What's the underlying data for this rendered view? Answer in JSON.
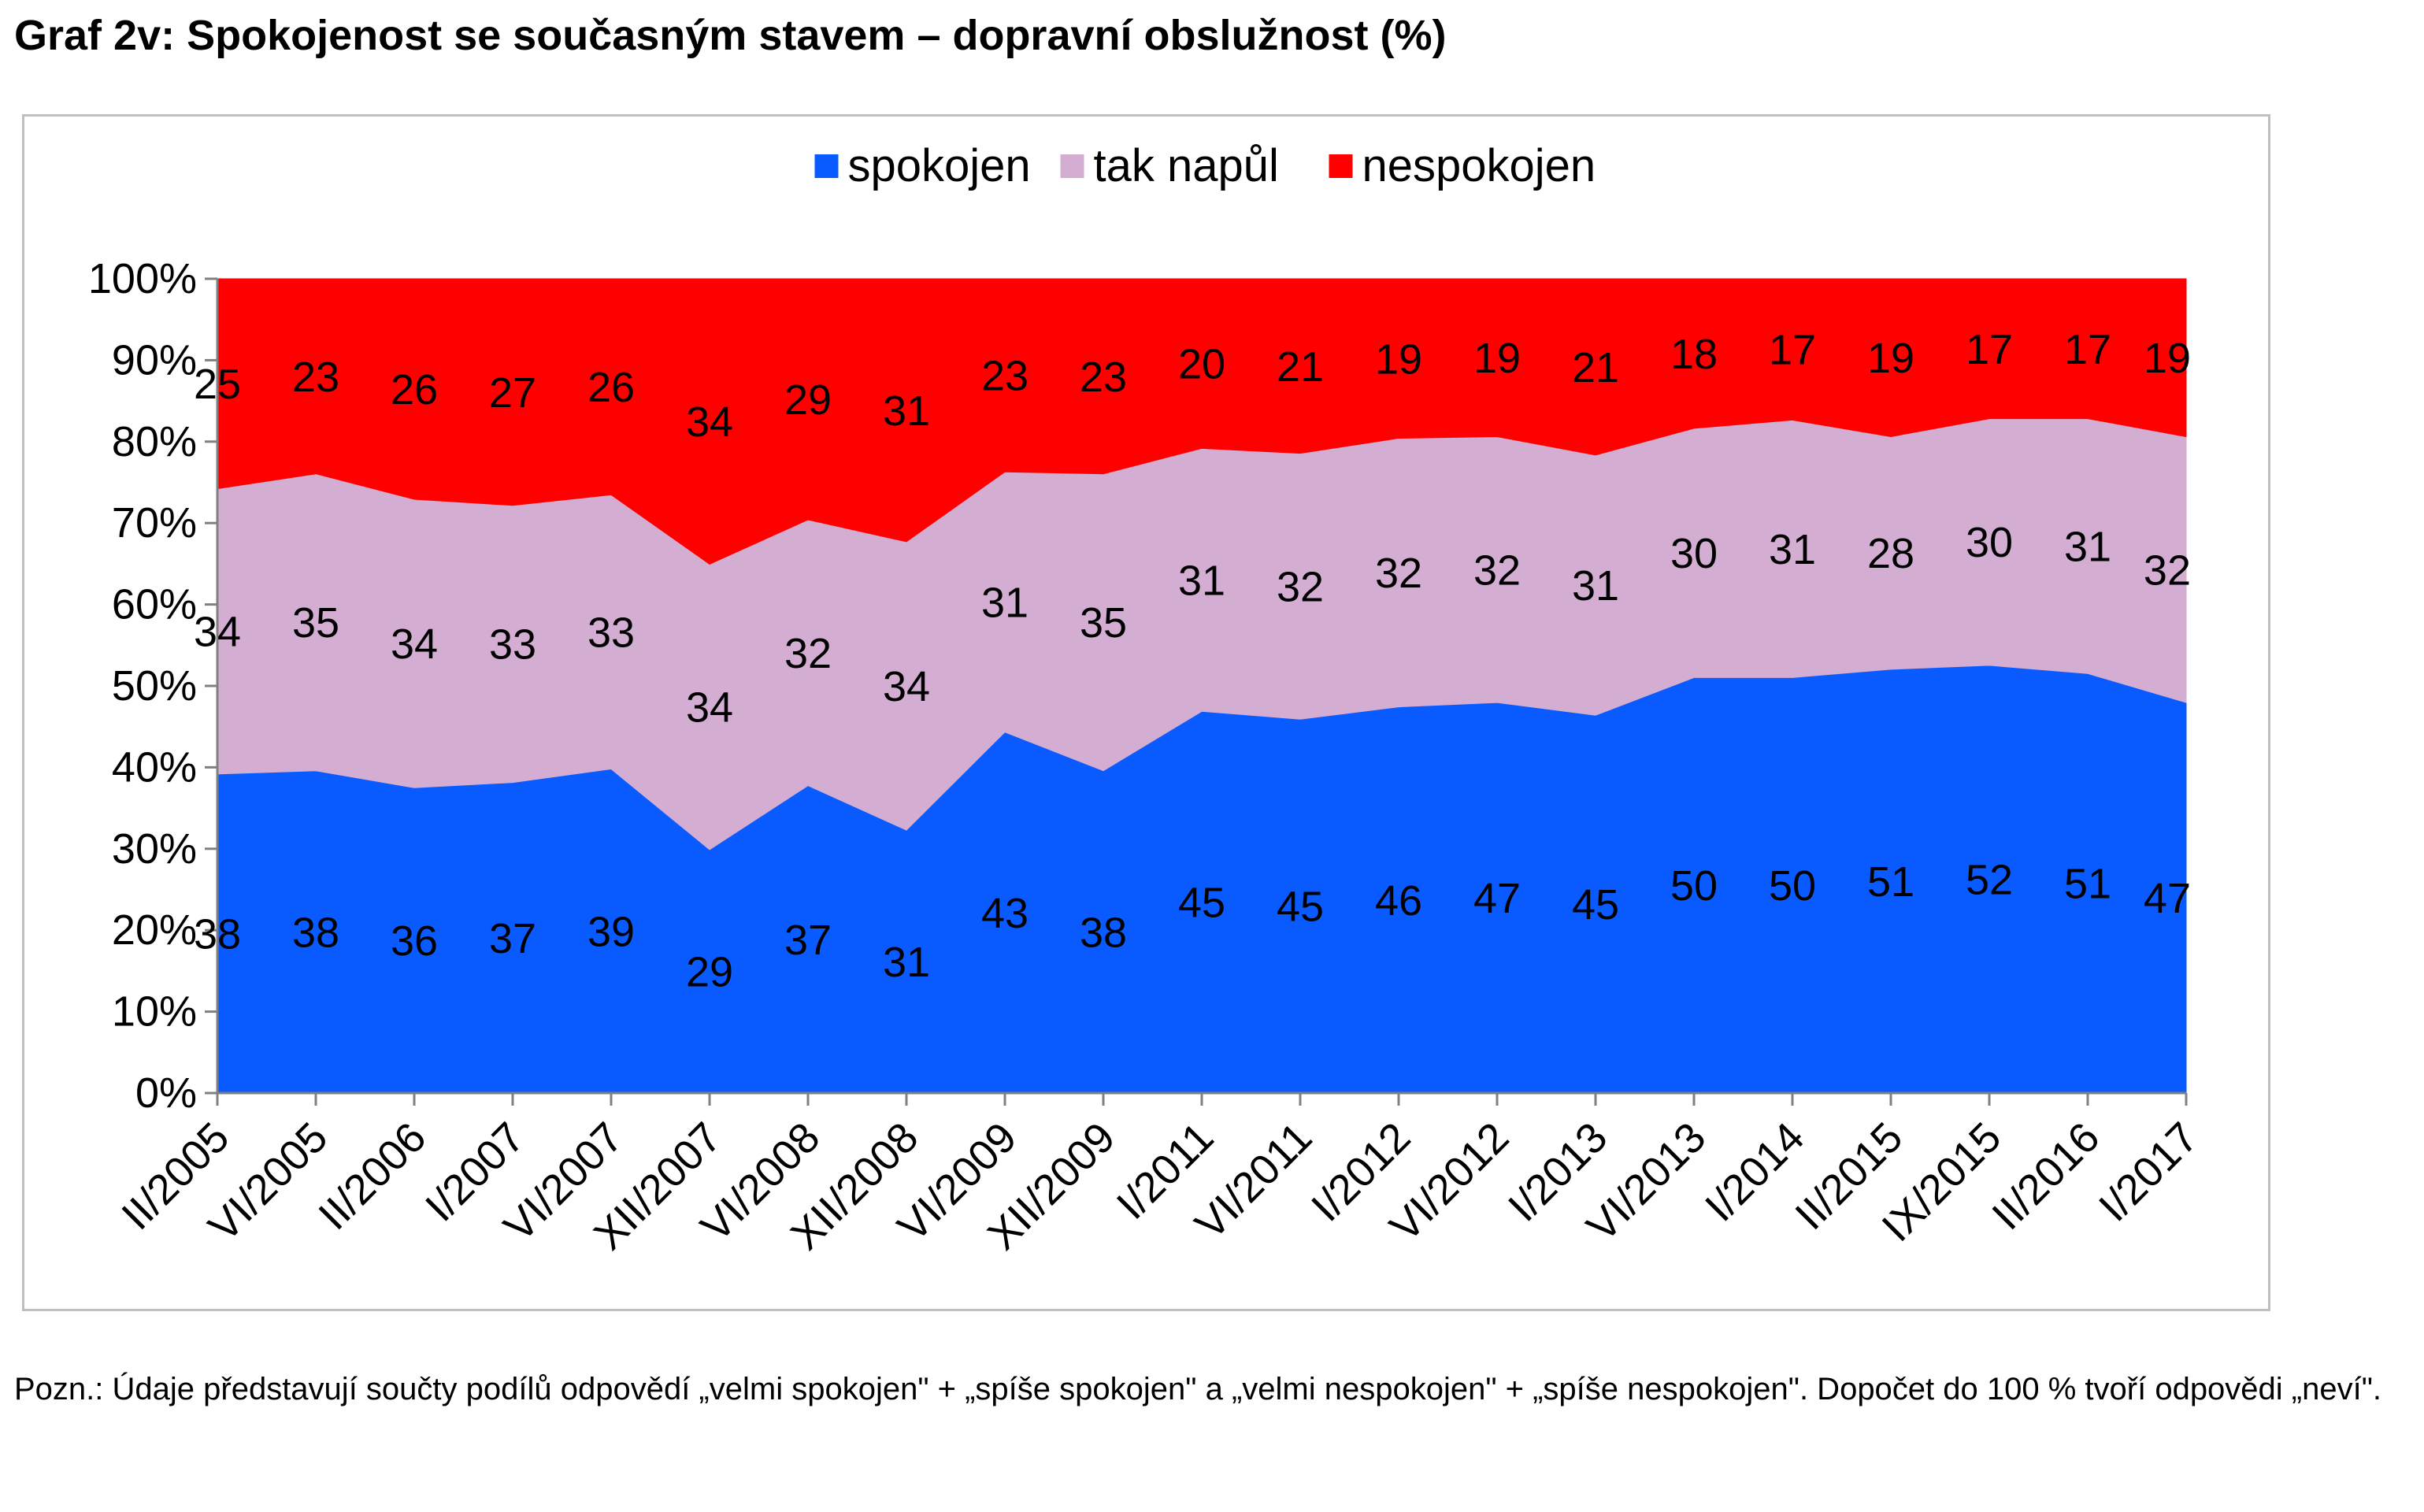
{
  "title": "Graf 2v: Spokojenost se současným stavem – dopravní obslužnost (%)",
  "note": "Pozn.: Údaje představují součty podílů odpovědí „velmi spokojen\" + „spíše spokojen\" a „velmi nespokojen\" + „spíše nespokojen\". Dopočet do 100 % tvoří odpovědi „neví\".",
  "chart_data": {
    "type": "area",
    "stacked": "percent",
    "categories": [
      "II/2005",
      "VI/2005",
      "II/2006",
      "I/2007",
      "VI/2007",
      "XII/2007",
      "VI/2008",
      "XII/2008",
      "VI/2009",
      "XII/2009",
      "I/2011",
      "VI/2011",
      "I/2012",
      "VI/2012",
      "I/2013",
      "VI/2013",
      "I/2014",
      "II/2015",
      "IX/2015",
      "II/2016",
      "I/2017"
    ],
    "series": [
      {
        "name": "spokojen",
        "color": "#0a5bff",
        "values": [
          38,
          38,
          36,
          37,
          39,
          29,
          37,
          31,
          43,
          38,
          45,
          45,
          46,
          47,
          45,
          50,
          50,
          51,
          52,
          51,
          47
        ]
      },
      {
        "name": "tak napůl",
        "color": "#d3add2",
        "values": [
          34,
          35,
          34,
          33,
          33,
          34,
          32,
          34,
          31,
          35,
          31,
          32,
          32,
          32,
          31,
          30,
          31,
          28,
          30,
          31,
          32
        ]
      },
      {
        "name": "nespokojen",
        "color": "#ff0000",
        "values": [
          25,
          23,
          26,
          27,
          26,
          34,
          29,
          31,
          23,
          23,
          20,
          21,
          19,
          19,
          21,
          18,
          17,
          19,
          17,
          17,
          19
        ]
      }
    ],
    "yticks": [
      "0%",
      "10%",
      "20%",
      "30%",
      "40%",
      "50%",
      "60%",
      "70%",
      "80%",
      "90%",
      "100%"
    ],
    "ylim": [
      0,
      100
    ],
    "legend": "top-center",
    "grid": false
  }
}
